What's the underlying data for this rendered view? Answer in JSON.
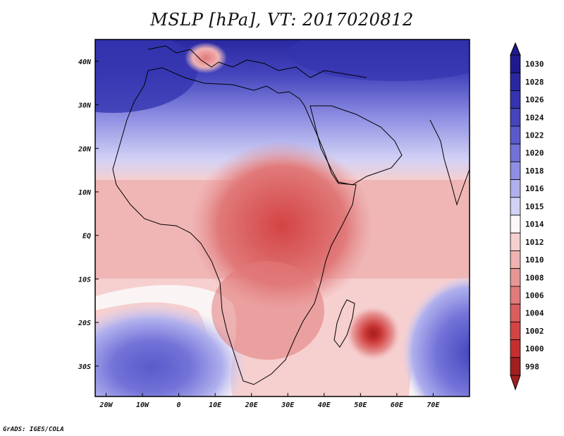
{
  "title": "MSLP [hPa], VT: 2017020812",
  "footer": "GrADS: IGES/COLA",
  "map": {
    "projection": "latlon",
    "lon_range": [
      -23,
      80
    ],
    "lat_range": [
      -37,
      45
    ],
    "lon_ticks": [
      {
        "lon": -20,
        "label": "20W"
      },
      {
        "lon": -10,
        "label": "10W"
      },
      {
        "lon": 0,
        "label": "0"
      },
      {
        "lon": 10,
        "label": "10E"
      },
      {
        "lon": 20,
        "label": "20E"
      },
      {
        "lon": 30,
        "label": "30E"
      },
      {
        "lon": 40,
        "label": "40E"
      },
      {
        "lon": 50,
        "label": "50E"
      },
      {
        "lon": 60,
        "label": "60E"
      },
      {
        "lon": 70,
        "label": "70E"
      }
    ],
    "lat_ticks": [
      {
        "lat": 40,
        "label": "40N"
      },
      {
        "lat": 30,
        "label": "30N"
      },
      {
        "lat": 20,
        "label": "20N"
      },
      {
        "lat": 10,
        "label": "10N"
      },
      {
        "lat": 0,
        "label": "EQ"
      },
      {
        "lat": -10,
        "label": "10S"
      },
      {
        "lat": -20,
        "label": "20S"
      },
      {
        "lat": -30,
        "label": "30S"
      }
    ],
    "low_center": {
      "lon": 53.5,
      "lat": -22.5,
      "min_hpa": 998
    }
  },
  "colorbar": {
    "levels": [
      {
        "label": "1030",
        "color": "#1e1a8e"
      },
      {
        "label": "1028",
        "color": "#2a28a0"
      },
      {
        "label": "1026",
        "color": "#3434b0"
      },
      {
        "label": "1024",
        "color": "#4545bd"
      },
      {
        "label": "1022",
        "color": "#5a5acb"
      },
      {
        "label": "1020",
        "color": "#7272d8"
      },
      {
        "label": "1018",
        "color": "#8e8ee3"
      },
      {
        "label": "1016",
        "color": "#b0b0ee"
      },
      {
        "label": "1015",
        "color": "#d2d2f6"
      },
      {
        "label": "1014",
        "color": "#fbf7f7"
      },
      {
        "label": "1012",
        "color": "#f6cfcf"
      },
      {
        "label": "1010",
        "color": "#f0b2b2"
      },
      {
        "label": "1008",
        "color": "#e79696"
      },
      {
        "label": "1006",
        "color": "#e17a7a"
      },
      {
        "label": "1004",
        "color": "#da5e5e"
      },
      {
        "label": "1002",
        "color": "#d44444"
      },
      {
        "label": "1000",
        "color": "#c52f2f"
      },
      {
        "label": "998",
        "color": "#a21f1f"
      }
    ]
  }
}
